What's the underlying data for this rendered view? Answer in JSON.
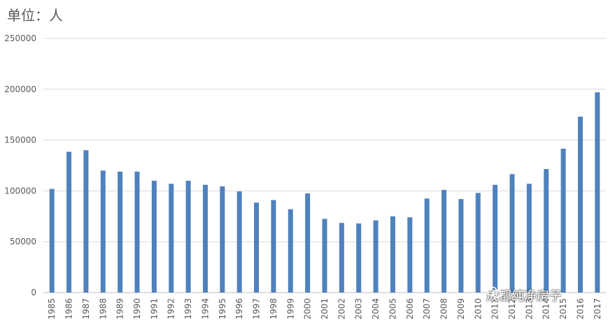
{
  "unit_label": "单位：人",
  "watermark": "成都纯净房子",
  "chart_data": {
    "type": "bar",
    "title": "",
    "xlabel": "",
    "ylabel": "",
    "ylim": [
      0,
      250000
    ],
    "yticks": [
      0,
      50000,
      100000,
      150000,
      200000,
      250000
    ],
    "grid": true,
    "bar_color": "#4f81bd",
    "categories": [
      "1985",
      "1986",
      "1987",
      "1988",
      "1989",
      "1990",
      "1991",
      "1992",
      "1993",
      "1994",
      "1995",
      "1996",
      "1997",
      "1998",
      "1999",
      "2000",
      "2001",
      "2002",
      "2003",
      "2004",
      "2005",
      "2006",
      "2007",
      "2008",
      "2009",
      "2010",
      "2011",
      "2012",
      "2013",
      "2014",
      "2015",
      "2016",
      "2017"
    ],
    "values": [
      102000,
      138500,
      140000,
      120000,
      119000,
      119000,
      110000,
      107000,
      110000,
      106000,
      104500,
      99500,
      88500,
      91000,
      82000,
      97500,
      72500,
      68500,
      68000,
      71000,
      75000,
      74000,
      92500,
      101000,
      92000,
      98000,
      106000,
      116500,
      107000,
      121500,
      141500,
      173000,
      197000
    ]
  }
}
